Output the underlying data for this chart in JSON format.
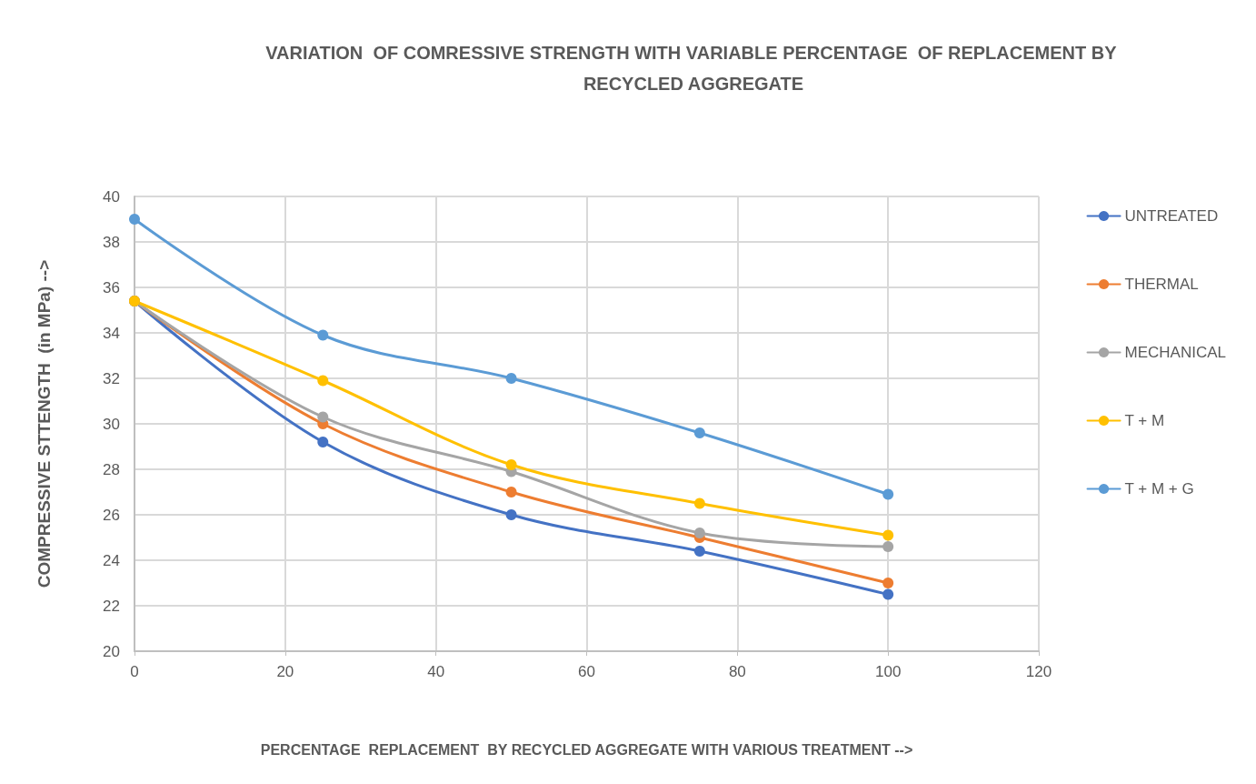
{
  "chart_data": {
    "type": "line",
    "title": "VARIATION  OF COMRESSIVE STRENGTH WITH VARIABLE PERCENTAGE  OF REPLACEMENT BY RECYCLED AGGREGATE",
    "xlabel": "PERCENTAGE  REPLACEMENT  BY RECYCLED AGGREGATE WITH VARIOUS TREATMENT -->",
    "ylabel": "COMPRESSIVE STTENGTH  (in MPa) -->",
    "x": [
      0,
      25,
      50,
      75,
      100
    ],
    "series": [
      {
        "name": "UNTREATED",
        "color": "#4472c4",
        "values": [
          35.4,
          29.2,
          26,
          24.4,
          22.5
        ]
      },
      {
        "name": "THERMAL",
        "color": "#ed7d31",
        "values": [
          35.4,
          30,
          27,
          25,
          23
        ]
      },
      {
        "name": "MECHANICAL",
        "color": "#a5a5a5",
        "values": [
          35.4,
          30.3,
          27.9,
          25.2,
          24.6
        ]
      },
      {
        "name": "T + M",
        "color": "#ffc000",
        "values": [
          35.4,
          31.9,
          28.2,
          26.5,
          25.1
        ]
      },
      {
        "name": "T + M + G",
        "color": "#5b9bd5",
        "values": [
          39,
          33.9,
          32,
          29.6,
          26.9
        ]
      }
    ],
    "xlim": [
      0,
      120
    ],
    "xticks": [
      0,
      20,
      40,
      60,
      80,
      100,
      120
    ],
    "ylim": [
      20,
      40
    ],
    "yticks": [
      20,
      22,
      24,
      26,
      28,
      30,
      32,
      34,
      36,
      38,
      40
    ],
    "grid": true,
    "legend": "right",
    "marker": "circle",
    "line_style": "solid"
  }
}
